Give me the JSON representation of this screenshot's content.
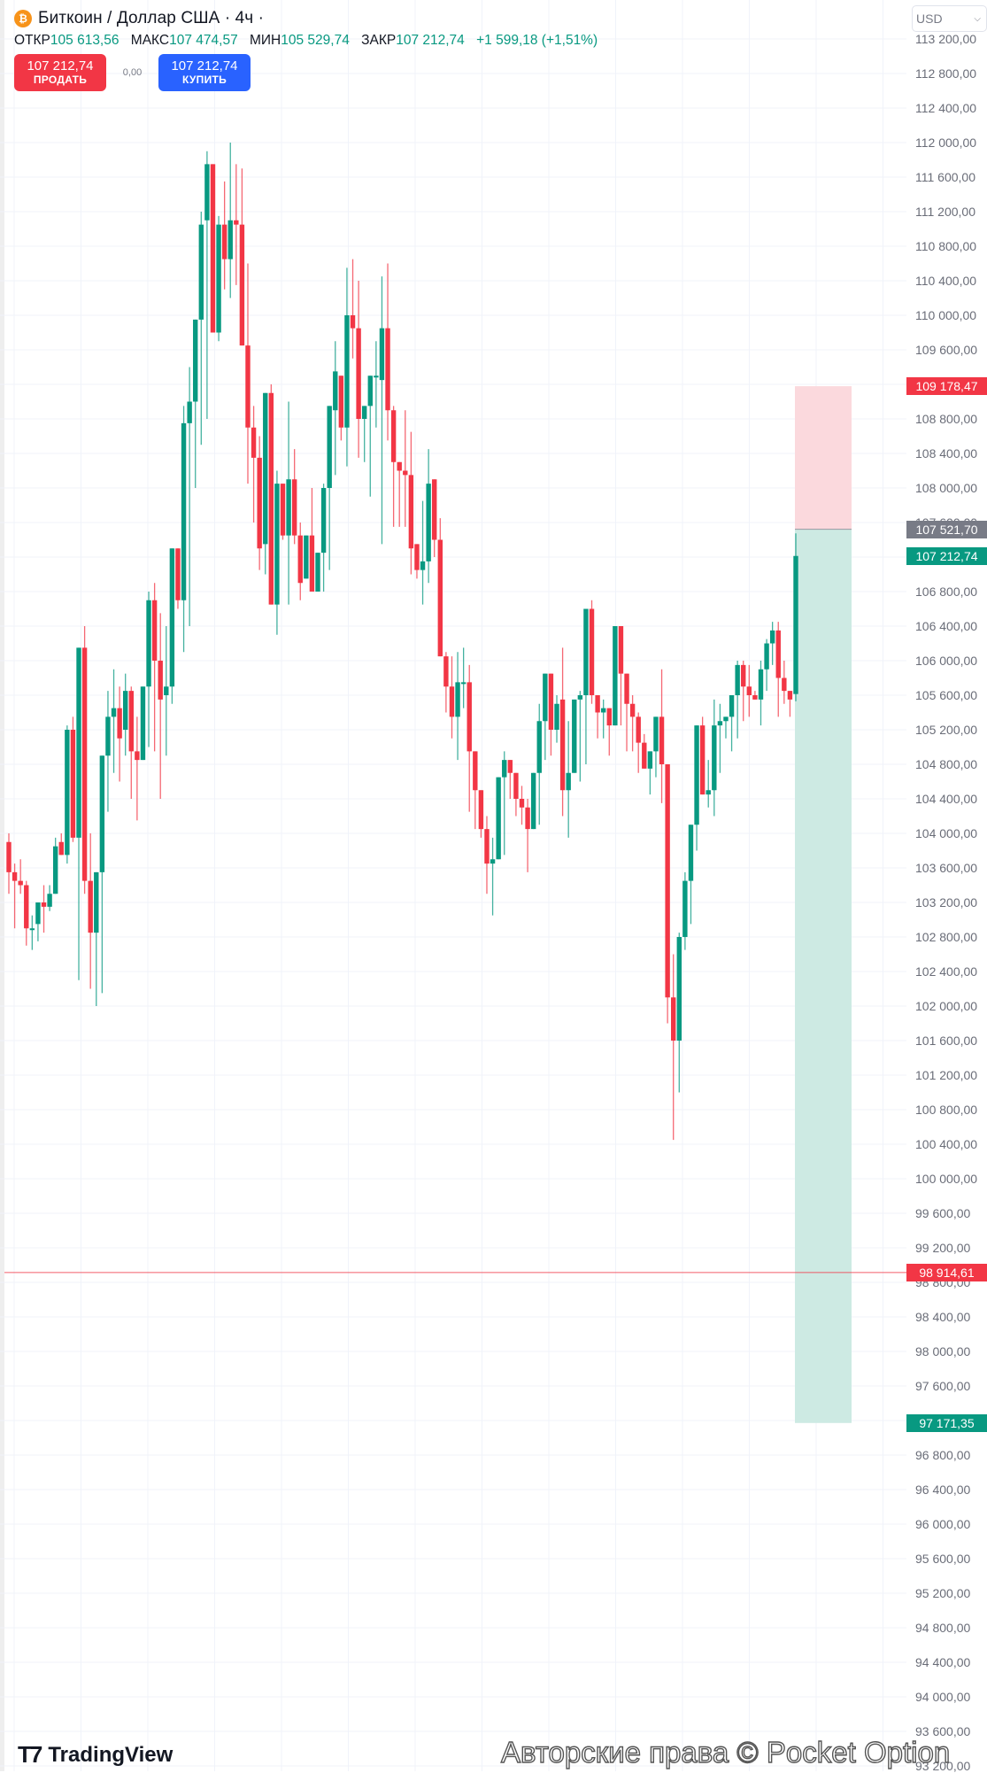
{
  "header": {
    "title": "Биткоин / Доллар США · 4ч · ",
    "coin_icon": "bitcoin-icon",
    "ohlc": {
      "open_label": "ОТКР",
      "open": "105 613,56",
      "high_label": "МАКС",
      "high": "107 474,57",
      "low_label": "МИН",
      "low": "105 529,74",
      "close_label": "ЗАКР",
      "close": "107 212,74",
      "change": "+1 599,18 (+1,51%)"
    },
    "sell": {
      "price": "107 212,74",
      "label": "ПРОДАТЬ"
    },
    "spread": "0,00",
    "buy": {
      "price": "107 212,74",
      "label": "КУПИТЬ"
    }
  },
  "currency_select": {
    "value": "USD",
    "icon": "chevron-down-icon"
  },
  "footer": {
    "logo_text": "TradingView",
    "logo_icon": "tradingview-logo-icon",
    "watermark": "Авторские права © Pocket Option"
  },
  "colors": {
    "up": "#089981",
    "down": "#f23645",
    "grid": "#f0f3fa",
    "stop_zone": "#fbd9dd",
    "target_zone": "#cdeae3",
    "current_label": "#787b86"
  },
  "chart_data": {
    "type": "candlestick",
    "title": "Биткоин / Доллар США · 4ч",
    "timeframe": "4h",
    "ylabel": "USD",
    "ylim": [
      93200,
      113200
    ],
    "y_ticks": [
      113200,
      112800,
      112400,
      112000,
      111600,
      111200,
      110800,
      110400,
      110000,
      109600,
      109200,
      108800,
      108400,
      108000,
      107600,
      107200,
      106800,
      106400,
      106000,
      105600,
      105200,
      104800,
      104400,
      104000,
      103600,
      103200,
      102800,
      102400,
      102000,
      101600,
      101200,
      100800,
      100400,
      100000,
      99600,
      99200,
      98800,
      98400,
      98000,
      97600,
      97200,
      96800,
      96400,
      96000,
      95600,
      95200,
      94800,
      94400,
      94000,
      93600,
      93200
    ],
    "y_tick_labels": [
      "113 200,00",
      "112 800,00",
      "112 400,00",
      "112 000,00",
      "111 600,00",
      "111 200,00",
      "110 800,00",
      "110 400,00",
      "110 000,00",
      "109 600,00",
      "109 200,00",
      "108 800,00",
      "108 400,00",
      "108 000,00",
      "107 600,00",
      "107 200,00",
      "106 800,00",
      "106 400,00",
      "106 000,00",
      "105 600,00",
      "105 200,00",
      "104 800,00",
      "104 400,00",
      "104 000,00",
      "103 600,00",
      "103 200,00",
      "102 800,00",
      "102 400,00",
      "102 000,00",
      "101 600,00",
      "101 200,00",
      "100 800,00",
      "100 400,00",
      "100 000,00",
      "99 600,00",
      "99 200,00",
      "98 800,00",
      "98 400,00",
      "98 000,00",
      "97 600,00",
      "97 200,00",
      "96 800,00",
      "96 400,00",
      "96 000,00",
      "95 600,00",
      "95 200,00",
      "94 800,00",
      "94 400,00",
      "94 000,00",
      "93 600,00",
      "93 200,00"
    ],
    "grid": true,
    "last_price": 107212.74,
    "price_tags": [
      {
        "label": "109 178,47",
        "value": 109178.47,
        "color": "#f23645",
        "role": "stop-loss"
      },
      {
        "label": "107 521,70",
        "value": 107521.7,
        "color": "#787b86",
        "role": "entry"
      },
      {
        "label": "107 212,74",
        "value": 107212.74,
        "color": "#089981",
        "role": "last-price"
      },
      {
        "label": "98 914,61",
        "value": 98914.61,
        "color": "#f23645",
        "role": "horizontal-line"
      },
      {
        "label": "97 171,35",
        "value": 97171.35,
        "color": "#089981",
        "role": "take-profit"
      }
    ],
    "position_tool": {
      "type": "short",
      "stop": 109178.47,
      "entry": 107521.7,
      "target": 97171.35
    },
    "horizontal_line": 98914.61,
    "candles_ohlc": [
      [
        103900,
        104000,
        103300,
        103550
      ],
      [
        103550,
        103650,
        102900,
        103450
      ],
      [
        103450,
        103700,
        103300,
        103400
      ],
      [
        103400,
        103450,
        102700,
        102900
      ],
      [
        102900,
        103050,
        102650,
        102900
      ],
      [
        102950,
        103200,
        102750,
        103200
      ],
      [
        103200,
        103400,
        102850,
        103150
      ],
      [
        103150,
        103400,
        103100,
        103300
      ],
      [
        103300,
        103950,
        103300,
        103850
      ],
      [
        103900,
        104000,
        103800,
        103750
      ],
      [
        103750,
        105250,
        103650,
        105200
      ],
      [
        105200,
        105350,
        103900,
        103950
      ],
      [
        103950,
        106150,
        102300,
        106150
      ],
      [
        106150,
        106400,
        103300,
        103450
      ],
      [
        103450,
        104000,
        102200,
        102850
      ],
      [
        102850,
        103200,
        102000,
        103550
      ],
      [
        103550,
        104900,
        102150,
        104900
      ],
      [
        104900,
        105650,
        104250,
        105350
      ],
      [
        105350,
        105900,
        104700,
        105450
      ],
      [
        105450,
        105700,
        104600,
        105100
      ],
      [
        105200,
        105850,
        104900,
        105650
      ],
      [
        105650,
        105700,
        104400,
        104950
      ],
      [
        104950,
        105350,
        104150,
        104850
      ],
      [
        104850,
        105550,
        104850,
        105700
      ],
      [
        105700,
        106800,
        105000,
        106700
      ],
      [
        106700,
        106900,
        104950,
        106000
      ],
      [
        106000,
        106550,
        104400,
        105550
      ],
      [
        105600,
        106400,
        104900,
        105700
      ],
      [
        105700,
        107200,
        105500,
        107300
      ],
      [
        107300,
        107200,
        106600,
        106700
      ],
      [
        106700,
        108950,
        106100,
        108750
      ],
      [
        108750,
        109400,
        106400,
        109000
      ],
      [
        109000,
        109950,
        108000,
        109950
      ],
      [
        109950,
        111200,
        108500,
        111050
      ],
      [
        111100,
        111900,
        108800,
        111750
      ],
      [
        111750,
        111700,
        109950,
        109800
      ],
      [
        109800,
        111150,
        109700,
        111050
      ],
      [
        111050,
        111550,
        110300,
        110650
      ],
      [
        110650,
        112000,
        110200,
        111100
      ],
      [
        111100,
        111750,
        110350,
        111050
      ],
      [
        111050,
        111700,
        109950,
        109650
      ],
      [
        109650,
        110600,
        108050,
        108700
      ],
      [
        108700,
        108950,
        107600,
        108350
      ],
      [
        108350,
        108600,
        107050,
        107300
      ],
      [
        107350,
        108950,
        107000,
        109100
      ],
      [
        109100,
        109200,
        106700,
        106650
      ],
      [
        106650,
        108200,
        106300,
        108050
      ],
      [
        108050,
        108050,
        107400,
        107450
      ],
      [
        107450,
        109000,
        106650,
        108100
      ],
      [
        108100,
        108450,
        107350,
        107450
      ],
      [
        107450,
        107600,
        106700,
        106900
      ],
      [
        106950,
        107250,
        107200,
        107450
      ],
      [
        107450,
        108000,
        106950,
        106800
      ],
      [
        106800,
        107000,
        106900,
        107250
      ],
      [
        107250,
        108050,
        106800,
        108000
      ],
      [
        108000,
        108950,
        107050,
        108950
      ],
      [
        108900,
        109700,
        108150,
        109350
      ],
      [
        109300,
        109300,
        108550,
        108700
      ],
      [
        108700,
        110550,
        108250,
        110000
      ],
      [
        110000,
        110650,
        109500,
        109850
      ],
      [
        109850,
        110400,
        108350,
        108800
      ],
      [
        108800,
        108750,
        108300,
        108950
      ],
      [
        108950,
        108900,
        107900,
        109300
      ],
      [
        109300,
        109700,
        108700,
        109300
      ],
      [
        109250,
        110450,
        107350,
        109850
      ],
      [
        109850,
        110600,
        108550,
        108900
      ],
      [
        108900,
        108950,
        107550,
        108300
      ],
      [
        108300,
        108150,
        107550,
        108200
      ],
      [
        108200,
        108900,
        107550,
        108150
      ],
      [
        108150,
        108650,
        107000,
        107300
      ],
      [
        107350,
        107200,
        106950,
        107050
      ],
      [
        107050,
        107850,
        106650,
        107150
      ],
      [
        107150,
        108450,
        106900,
        108050
      ],
      [
        108100,
        108100,
        107200,
        107400
      ],
      [
        107400,
        107650,
        106750,
        106050
      ],
      [
        106050,
        106100,
        105400,
        105700
      ],
      [
        105700,
        106050,
        105100,
        105350
      ],
      [
        105350,
        106100,
        104850,
        105750
      ],
      [
        105750,
        106150,
        105450,
        105750
      ],
      [
        105750,
        105950,
        104250,
        104950
      ],
      [
        104950,
        104900,
        104050,
        104500
      ],
      [
        104500,
        104450,
        103950,
        104050
      ],
      [
        104050,
        104200,
        103300,
        103650
      ],
      [
        103650,
        103950,
        103050,
        103700
      ],
      [
        103700,
        103550,
        103800,
        104650
      ],
      [
        104650,
        104950,
        103750,
        104850
      ],
      [
        104850,
        104600,
        104400,
        104700
      ],
      [
        104700,
        104600,
        104200,
        104400
      ],
      [
        104400,
        104550,
        104100,
        104300
      ],
      [
        104300,
        104400,
        103550,
        104050
      ],
      [
        104050,
        104700,
        104200,
        104700
      ],
      [
        104700,
        105500,
        104100,
        105300
      ],
      [
        105300,
        105800,
        104850,
        105850
      ],
      [
        105850,
        105800,
        104900,
        105200
      ],
      [
        105200,
        105600,
        105050,
        105500
      ],
      [
        105550,
        106150,
        104200,
        104500
      ],
      [
        104500,
        105300,
        103950,
        104700
      ],
      [
        104700,
        104700,
        104750,
        105550
      ],
      [
        105550,
        105650,
        104600,
        105600
      ],
      [
        105600,
        106500,
        104800,
        106600
      ],
      [
        106600,
        106700,
        105500,
        105600
      ],
      [
        105600,
        105600,
        105100,
        105400
      ],
      [
        105400,
        105550,
        105100,
        105450
      ],
      [
        105450,
        105300,
        104900,
        105250
      ],
      [
        105250,
        105750,
        105350,
        106400
      ],
      [
        106400,
        106400,
        105250,
        105850
      ],
      [
        105850,
        105750,
        104950,
        105500
      ],
      [
        105500,
        105600,
        104950,
        105350
      ],
      [
        105350,
        105400,
        104700,
        105050
      ],
      [
        105050,
        105150,
        104900,
        104750
      ],
      [
        104750,
        104850,
        104450,
        104950
      ],
      [
        104950,
        105350,
        104650,
        105350
      ],
      [
        105350,
        105900,
        104350,
        104800
      ],
      [
        104800,
        103300,
        101800,
        102100
      ],
      [
        102100,
        102600,
        100450,
        101600
      ],
      [
        101600,
        102850,
        101000,
        102800
      ],
      [
        102800,
        103550,
        102650,
        103450
      ],
      [
        103450,
        104050,
        102950,
        104100
      ],
      [
        104100,
        104150,
        103800,
        105250
      ],
      [
        105250,
        105350,
        104500,
        104450
      ],
      [
        104450,
        104850,
        104300,
        104500
      ],
      [
        104500,
        105550,
        104200,
        105250
      ],
      [
        105250,
        105500,
        104700,
        105300
      ],
      [
        105300,
        105300,
        105100,
        105350
      ],
      [
        105350,
        105600,
        104950,
        105600
      ],
      [
        105600,
        106000,
        105100,
        105950
      ],
      [
        105950,
        106000,
        105300,
        105700
      ],
      [
        105700,
        105950,
        105350,
        105600
      ],
      [
        105600,
        105650,
        105550,
        105550
      ],
      [
        105550,
        106000,
        105250,
        105900
      ],
      [
        105900,
        106250,
        105650,
        106200
      ],
      [
        106200,
        106450,
        105950,
        106350
      ],
      [
        106350,
        106450,
        105350,
        105800
      ],
      [
        105800,
        106000,
        105500,
        105650
      ],
      [
        105650,
        105650,
        105350,
        105550
      ],
      [
        105613.56,
        107474.57,
        105529.74,
        107212.74
      ]
    ]
  }
}
